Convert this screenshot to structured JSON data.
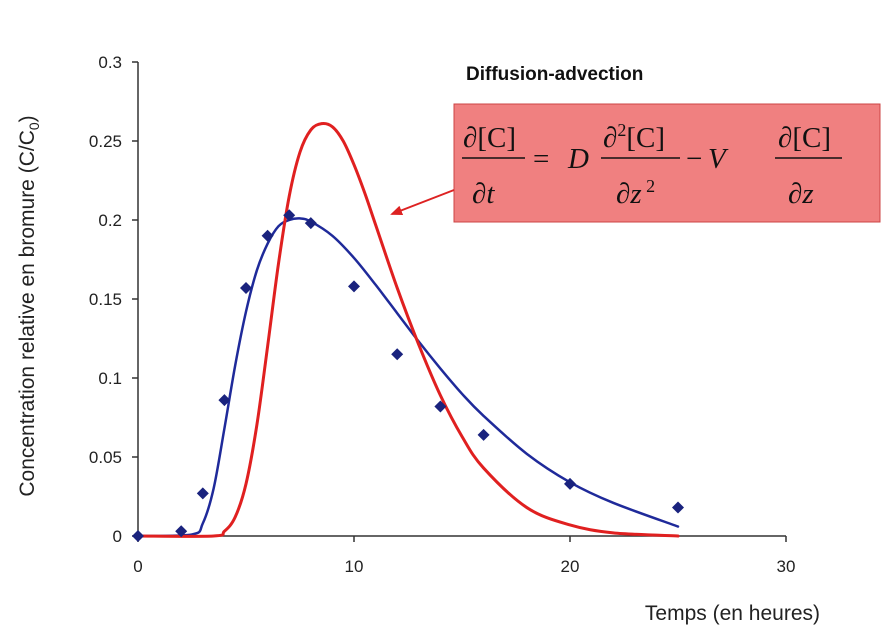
{
  "chart_data": {
    "type": "scatter",
    "title": "Diffusion-advection",
    "xlabel": "Temps (en heures)",
    "ylabel": "Concentration relative en bromure (C/C0)",
    "ylabel_main": "Concentration relative en bromure (C/C",
    "ylabel_sub": "0",
    "ylabel_close": ")",
    "xlim": [
      0,
      30
    ],
    "ylim": [
      0,
      0.3
    ],
    "x_ticks": [
      0,
      10,
      20,
      30
    ],
    "x_tick_labels": [
      "0",
      "10",
      "20",
      "30"
    ],
    "y_ticks": [
      0,
      0.05,
      0.1,
      0.15,
      0.2,
      0.25,
      0.3
    ],
    "y_tick_labels": [
      "0",
      "0.05",
      "0.1",
      "0.15",
      "0.2",
      "0.25",
      "0.3"
    ],
    "grid": false,
    "legend": "none",
    "annotation": {
      "equation": "∂[C]/∂t = D ∂²[C]/∂z² − V ∂[C]/∂z",
      "box_color": "#f08080",
      "arrow_color": "#dd2222"
    },
    "series": [
      {
        "kind": "points",
        "color": "#1a237e",
        "x": [
          0,
          2,
          3,
          4,
          5,
          6,
          7,
          8,
          10,
          12,
          14,
          16,
          20,
          25
        ],
        "y": [
          0.0,
          0.003,
          0.027,
          0.086,
          0.157,
          0.19,
          0.203,
          0.198,
          0.158,
          0.115,
          0.082,
          0.064,
          0.033,
          0.018
        ]
      },
      {
        "kind": "curve",
        "color": "#1f2a9a",
        "x": [
          0,
          2.5,
          3,
          3.5,
          4,
          4.5,
          5,
          5.5,
          6,
          6.5,
          7,
          7.5,
          8,
          9,
          10,
          11,
          12,
          13,
          14,
          15,
          16,
          18,
          20,
          22,
          25
        ],
        "y": [
          0.0,
          0.001,
          0.008,
          0.03,
          0.068,
          0.108,
          0.142,
          0.168,
          0.185,
          0.196,
          0.2,
          0.201,
          0.199,
          0.19,
          0.176,
          0.159,
          0.141,
          0.123,
          0.106,
          0.09,
          0.076,
          0.052,
          0.034,
          0.021,
          0.006
        ]
      },
      {
        "kind": "curve",
        "color": "#e02020",
        "x": [
          0,
          3.5,
          4,
          4.5,
          5,
          5.5,
          6,
          6.5,
          7,
          7.5,
          8,
          8.5,
          9,
          9.5,
          10,
          10.5,
          11,
          12,
          13,
          14,
          15,
          16,
          18,
          20,
          22,
          25
        ],
        "y": [
          0.0,
          0.0,
          0.003,
          0.012,
          0.033,
          0.07,
          0.12,
          0.172,
          0.215,
          0.243,
          0.257,
          0.261,
          0.259,
          0.25,
          0.235,
          0.217,
          0.197,
          0.157,
          0.121,
          0.089,
          0.063,
          0.043,
          0.018,
          0.007,
          0.002,
          0.0
        ]
      }
    ]
  }
}
